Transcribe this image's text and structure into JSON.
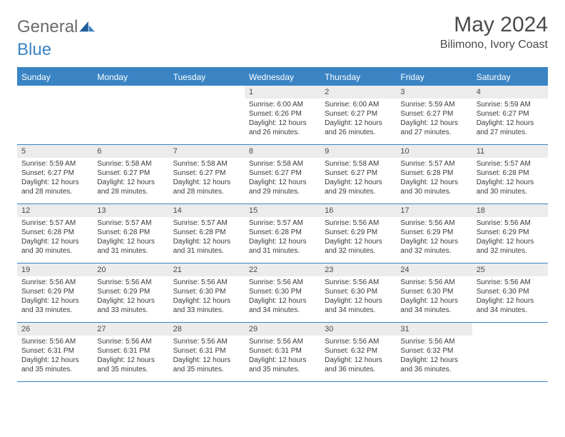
{
  "logo": {
    "word1": "General",
    "word2": "Blue"
  },
  "title": "May 2024",
  "location": "Bilimono, Ivory Coast",
  "colors": {
    "header_bg": "#3a84c4",
    "header_text": "#ffffff",
    "daynum_bg": "#ececec",
    "border": "#3a84c4",
    "text": "#3a3a3a"
  },
  "day_names": [
    "Sunday",
    "Monday",
    "Tuesday",
    "Wednesday",
    "Thursday",
    "Friday",
    "Saturday"
  ],
  "weeks": [
    [
      {
        "n": "",
        "sr": "",
        "ss": "",
        "dl": ""
      },
      {
        "n": "",
        "sr": "",
        "ss": "",
        "dl": ""
      },
      {
        "n": "",
        "sr": "",
        "ss": "",
        "dl": ""
      },
      {
        "n": "1",
        "sr": "Sunrise: 6:00 AM",
        "ss": "Sunset: 6:26 PM",
        "dl": "Daylight: 12 hours and 26 minutes."
      },
      {
        "n": "2",
        "sr": "Sunrise: 6:00 AM",
        "ss": "Sunset: 6:27 PM",
        "dl": "Daylight: 12 hours and 26 minutes."
      },
      {
        "n": "3",
        "sr": "Sunrise: 5:59 AM",
        "ss": "Sunset: 6:27 PM",
        "dl": "Daylight: 12 hours and 27 minutes."
      },
      {
        "n": "4",
        "sr": "Sunrise: 5:59 AM",
        "ss": "Sunset: 6:27 PM",
        "dl": "Daylight: 12 hours and 27 minutes."
      }
    ],
    [
      {
        "n": "5",
        "sr": "Sunrise: 5:59 AM",
        "ss": "Sunset: 6:27 PM",
        "dl": "Daylight: 12 hours and 28 minutes."
      },
      {
        "n": "6",
        "sr": "Sunrise: 5:58 AM",
        "ss": "Sunset: 6:27 PM",
        "dl": "Daylight: 12 hours and 28 minutes."
      },
      {
        "n": "7",
        "sr": "Sunrise: 5:58 AM",
        "ss": "Sunset: 6:27 PM",
        "dl": "Daylight: 12 hours and 28 minutes."
      },
      {
        "n": "8",
        "sr": "Sunrise: 5:58 AM",
        "ss": "Sunset: 6:27 PM",
        "dl": "Daylight: 12 hours and 29 minutes."
      },
      {
        "n": "9",
        "sr": "Sunrise: 5:58 AM",
        "ss": "Sunset: 6:27 PM",
        "dl": "Daylight: 12 hours and 29 minutes."
      },
      {
        "n": "10",
        "sr": "Sunrise: 5:57 AM",
        "ss": "Sunset: 6:28 PM",
        "dl": "Daylight: 12 hours and 30 minutes."
      },
      {
        "n": "11",
        "sr": "Sunrise: 5:57 AM",
        "ss": "Sunset: 6:28 PM",
        "dl": "Daylight: 12 hours and 30 minutes."
      }
    ],
    [
      {
        "n": "12",
        "sr": "Sunrise: 5:57 AM",
        "ss": "Sunset: 6:28 PM",
        "dl": "Daylight: 12 hours and 30 minutes."
      },
      {
        "n": "13",
        "sr": "Sunrise: 5:57 AM",
        "ss": "Sunset: 6:28 PM",
        "dl": "Daylight: 12 hours and 31 minutes."
      },
      {
        "n": "14",
        "sr": "Sunrise: 5:57 AM",
        "ss": "Sunset: 6:28 PM",
        "dl": "Daylight: 12 hours and 31 minutes."
      },
      {
        "n": "15",
        "sr": "Sunrise: 5:57 AM",
        "ss": "Sunset: 6:28 PM",
        "dl": "Daylight: 12 hours and 31 minutes."
      },
      {
        "n": "16",
        "sr": "Sunrise: 5:56 AM",
        "ss": "Sunset: 6:29 PM",
        "dl": "Daylight: 12 hours and 32 minutes."
      },
      {
        "n": "17",
        "sr": "Sunrise: 5:56 AM",
        "ss": "Sunset: 6:29 PM",
        "dl": "Daylight: 12 hours and 32 minutes."
      },
      {
        "n": "18",
        "sr": "Sunrise: 5:56 AM",
        "ss": "Sunset: 6:29 PM",
        "dl": "Daylight: 12 hours and 32 minutes."
      }
    ],
    [
      {
        "n": "19",
        "sr": "Sunrise: 5:56 AM",
        "ss": "Sunset: 6:29 PM",
        "dl": "Daylight: 12 hours and 33 minutes."
      },
      {
        "n": "20",
        "sr": "Sunrise: 5:56 AM",
        "ss": "Sunset: 6:29 PM",
        "dl": "Daylight: 12 hours and 33 minutes."
      },
      {
        "n": "21",
        "sr": "Sunrise: 5:56 AM",
        "ss": "Sunset: 6:30 PM",
        "dl": "Daylight: 12 hours and 33 minutes."
      },
      {
        "n": "22",
        "sr": "Sunrise: 5:56 AM",
        "ss": "Sunset: 6:30 PM",
        "dl": "Daylight: 12 hours and 34 minutes."
      },
      {
        "n": "23",
        "sr": "Sunrise: 5:56 AM",
        "ss": "Sunset: 6:30 PM",
        "dl": "Daylight: 12 hours and 34 minutes."
      },
      {
        "n": "24",
        "sr": "Sunrise: 5:56 AM",
        "ss": "Sunset: 6:30 PM",
        "dl": "Daylight: 12 hours and 34 minutes."
      },
      {
        "n": "25",
        "sr": "Sunrise: 5:56 AM",
        "ss": "Sunset: 6:30 PM",
        "dl": "Daylight: 12 hours and 34 minutes."
      }
    ],
    [
      {
        "n": "26",
        "sr": "Sunrise: 5:56 AM",
        "ss": "Sunset: 6:31 PM",
        "dl": "Daylight: 12 hours and 35 minutes."
      },
      {
        "n": "27",
        "sr": "Sunrise: 5:56 AM",
        "ss": "Sunset: 6:31 PM",
        "dl": "Daylight: 12 hours and 35 minutes."
      },
      {
        "n": "28",
        "sr": "Sunrise: 5:56 AM",
        "ss": "Sunset: 6:31 PM",
        "dl": "Daylight: 12 hours and 35 minutes."
      },
      {
        "n": "29",
        "sr": "Sunrise: 5:56 AM",
        "ss": "Sunset: 6:31 PM",
        "dl": "Daylight: 12 hours and 35 minutes."
      },
      {
        "n": "30",
        "sr": "Sunrise: 5:56 AM",
        "ss": "Sunset: 6:32 PM",
        "dl": "Daylight: 12 hours and 36 minutes."
      },
      {
        "n": "31",
        "sr": "Sunrise: 5:56 AM",
        "ss": "Sunset: 6:32 PM",
        "dl": "Daylight: 12 hours and 36 minutes."
      },
      {
        "n": "",
        "sr": "",
        "ss": "",
        "dl": ""
      }
    ]
  ]
}
